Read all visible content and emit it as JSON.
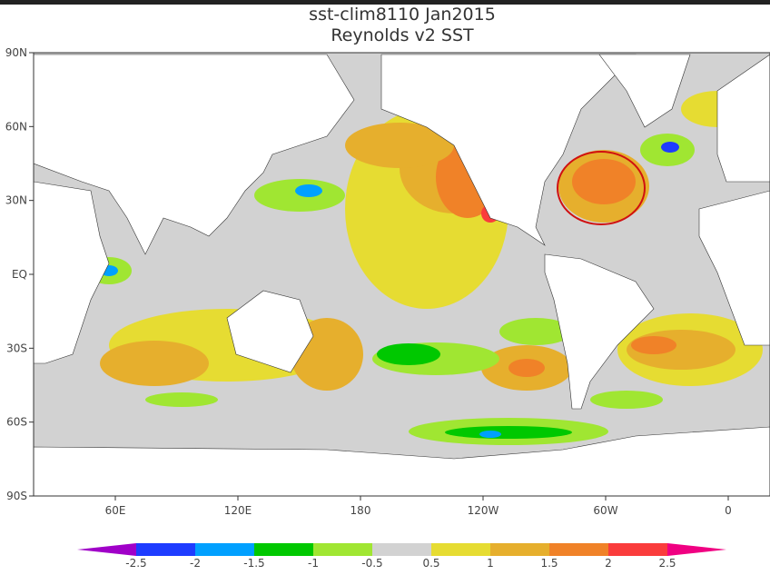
{
  "title": [
    "sst-clim8110 Jan2015",
    "Reynolds v2 SST"
  ],
  "map": {
    "lat_labels": [
      "90N",
      "60N",
      "30N",
      "EQ",
      "30S",
      "60S",
      "90S"
    ],
    "lon_labels": [
      "60E",
      "120E",
      "180",
      "120W",
      "60W",
      "0"
    ]
  },
  "colorbar": {
    "labels": [
      "-2.5",
      "-2",
      "-1.5",
      "-1",
      "-0.5",
      "0.5",
      "1",
      "1.5",
      "2",
      "2.5"
    ],
    "colors": [
      "#a000c8",
      "#1e3cff",
      "#00a0ff",
      "#00c800",
      "#a0e632",
      "#d2d2d2",
      "#e6dc32",
      "#e6af2d",
      "#f08228",
      "#fa3c3c",
      "#f00082"
    ]
  }
}
